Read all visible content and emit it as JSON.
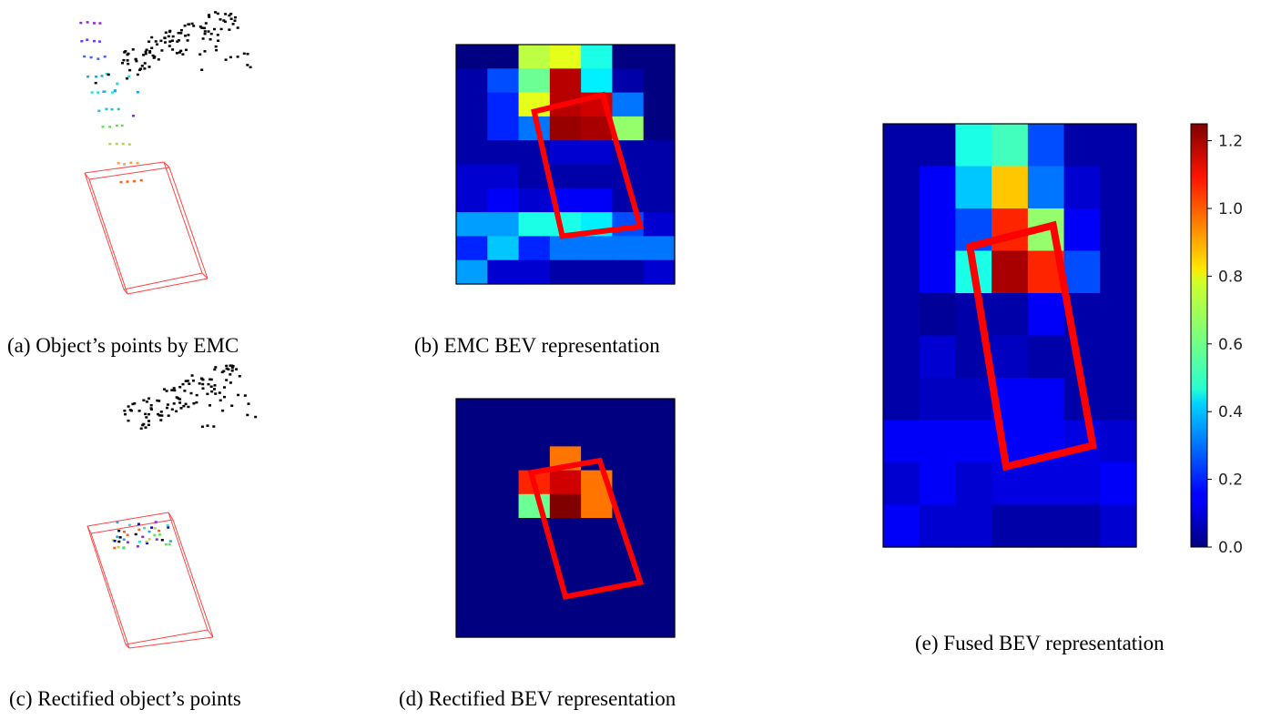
{
  "captions": {
    "a": "(a) Object’s points by EMC",
    "b": "(b) EMC BEV representation",
    "c": "(c) Rectified object’s points",
    "d": "(d) Rectified BEV representation",
    "e": "(e) Fused BEV representation"
  },
  "chart_data": [
    {
      "panel": "b",
      "type": "heatmap",
      "title": "",
      "colormap": "jet",
      "vmin": 0.0,
      "vmax": 1.25,
      "rows": 10,
      "cols": 7,
      "values": [
        [
          0.0,
          0.0,
          0.7,
          0.75,
          0.5,
          0.0,
          0.0
        ],
        [
          0.05,
          0.25,
          0.6,
          1.18,
          0.45,
          0.05,
          0.0
        ],
        [
          0.05,
          0.2,
          0.75,
          1.18,
          1.15,
          0.3,
          0.0
        ],
        [
          0.05,
          0.2,
          0.3,
          1.22,
          1.2,
          0.65,
          0.0
        ],
        [
          0.05,
          0.05,
          0.05,
          0.1,
          0.1,
          0.05,
          0.05
        ],
        [
          0.1,
          0.1,
          0.05,
          0.05,
          0.05,
          0.05,
          0.05
        ],
        [
          0.1,
          0.15,
          0.1,
          0.15,
          0.15,
          0.05,
          0.05
        ],
        [
          0.35,
          0.35,
          0.5,
          0.5,
          0.45,
          0.25,
          0.1
        ],
        [
          0.2,
          0.4,
          0.2,
          0.3,
          0.3,
          0.3,
          0.3
        ],
        [
          0.35,
          0.1,
          0.1,
          0.05,
          0.05,
          0.05,
          0.1
        ]
      ],
      "box": [
        [
          2.5,
          2.8
        ],
        [
          4.7,
          2.1
        ],
        [
          5.9,
          7.6
        ],
        [
          3.4,
          8.0
        ]
      ]
    },
    {
      "panel": "d",
      "type": "heatmap",
      "title": "",
      "colormap": "jet",
      "vmin": 0.0,
      "vmax": 1.25,
      "rows": 10,
      "cols": 7,
      "values": [
        [
          0,
          0,
          0,
          0,
          0,
          0,
          0
        ],
        [
          0,
          0,
          0,
          0,
          0,
          0,
          0
        ],
        [
          0,
          0,
          0,
          0.95,
          0,
          0,
          0
        ],
        [
          0,
          0,
          1.05,
          1.15,
          0.95,
          0,
          0
        ],
        [
          0,
          0,
          0.6,
          1.25,
          0.95,
          0,
          0
        ],
        [
          0,
          0,
          0,
          0,
          0,
          0,
          0
        ],
        [
          0,
          0,
          0,
          0,
          0,
          0,
          0
        ],
        [
          0,
          0,
          0,
          0,
          0,
          0,
          0
        ],
        [
          0,
          0,
          0,
          0,
          0,
          0,
          0
        ],
        [
          0,
          0,
          0,
          0,
          0,
          0,
          0
        ]
      ],
      "box": [
        [
          2.4,
          3.1
        ],
        [
          4.6,
          2.6
        ],
        [
          5.9,
          7.7
        ],
        [
          3.5,
          8.3
        ]
      ]
    },
    {
      "panel": "e",
      "type": "heatmap",
      "title": "",
      "colormap": "jet",
      "vmin": 0.0,
      "vmax": 1.25,
      "rows": 10,
      "cols": 7,
      "colorbar_ticks": [
        "0.0",
        "0.2",
        "0.4",
        "0.6",
        "0.8",
        "1.0",
        "1.2"
      ],
      "colorbar_tick_values": [
        0.0,
        0.2,
        0.4,
        0.6,
        0.8,
        1.0,
        1.2
      ],
      "values": [
        [
          0.05,
          0.05,
          0.5,
          0.55,
          0.25,
          0.05,
          0.05
        ],
        [
          0.05,
          0.15,
          0.4,
          0.85,
          0.3,
          0.1,
          0.05
        ],
        [
          0.05,
          0.15,
          0.25,
          1.05,
          0.65,
          0.15,
          0.05
        ],
        [
          0.05,
          0.15,
          0.5,
          1.2,
          1.05,
          0.25,
          0.05
        ],
        [
          0.05,
          0.03,
          0.05,
          0.05,
          0.15,
          0.05,
          0.05
        ],
        [
          0.05,
          0.1,
          0.05,
          0.08,
          0.05,
          0.05,
          0.05
        ],
        [
          0.05,
          0.08,
          0.08,
          0.15,
          0.15,
          0.05,
          0.05
        ],
        [
          0.15,
          0.15,
          0.15,
          0.15,
          0.15,
          0.12,
          0.1
        ],
        [
          0.1,
          0.15,
          0.1,
          0.12,
          0.12,
          0.12,
          0.15
        ],
        [
          0.15,
          0.1,
          0.1,
          0.05,
          0.05,
          0.05,
          0.1
        ]
      ],
      "box": [
        [
          2.4,
          2.9
        ],
        [
          4.7,
          2.4
        ],
        [
          5.8,
          7.6
        ],
        [
          3.4,
          8.1
        ]
      ]
    },
    {
      "panel": "a",
      "type": "scatter",
      "title": "",
      "note_colors": [
        "#8a2be2",
        "#4060ff",
        "#20a8e0",
        "#30e0d0",
        "#60e060",
        "#c0d040",
        "#ffa040",
        "#ff6020",
        "#000000"
      ]
    },
    {
      "panel": "c",
      "type": "scatter",
      "title": ""
    }
  ],
  "colors": {
    "box": "#ff0000",
    "wireframe": "#ff4444",
    "frame": "#000000"
  }
}
